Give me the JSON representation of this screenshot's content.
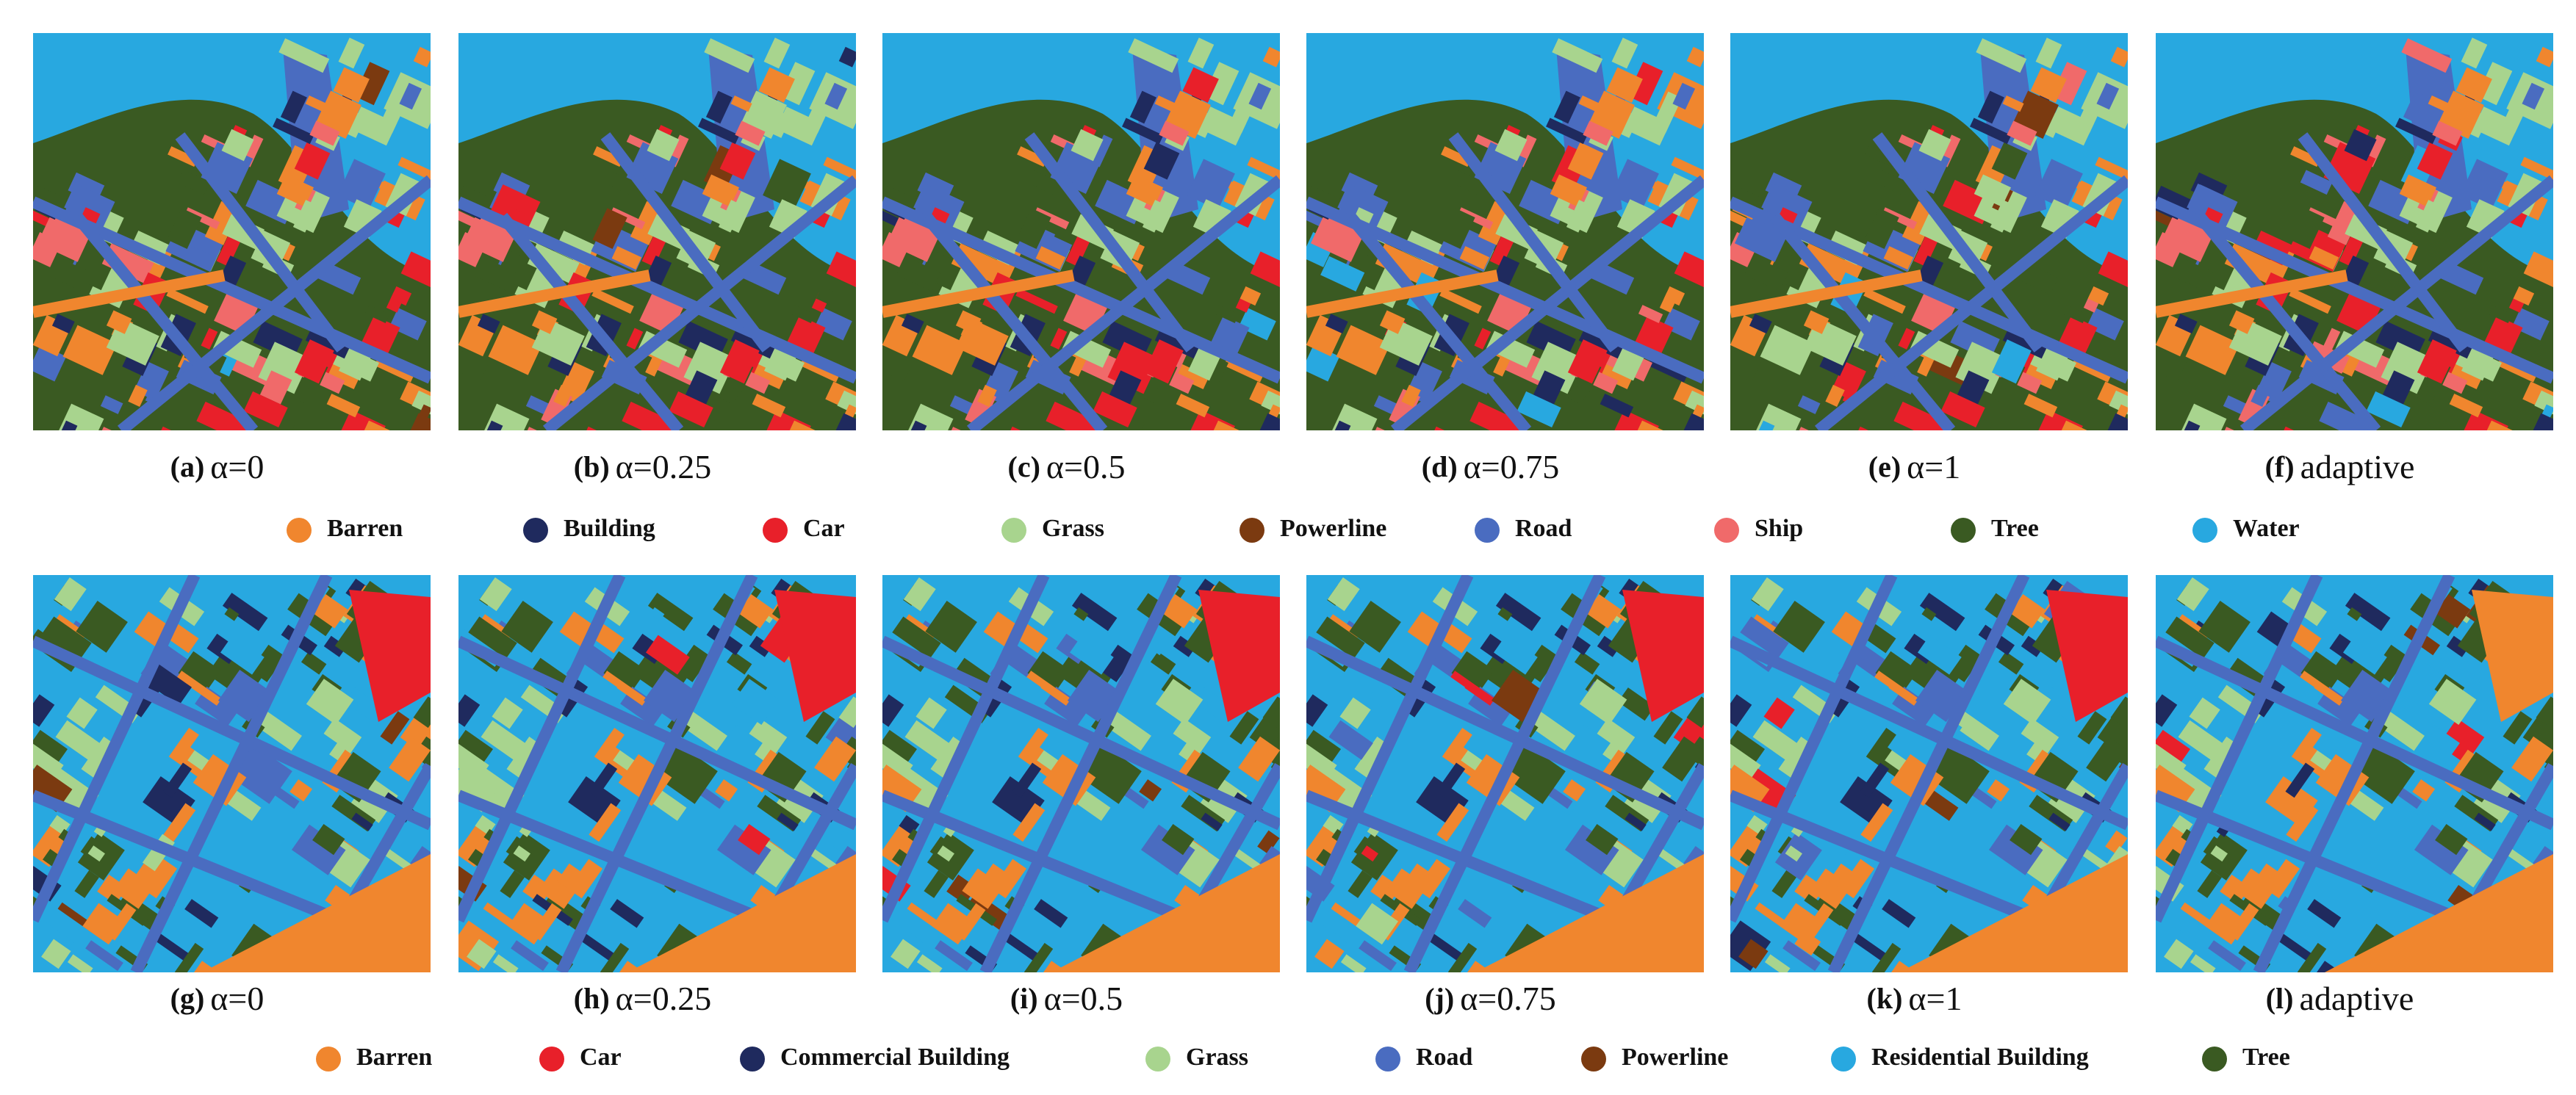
{
  "rows": [
    {
      "panels": [
        {
          "label": "(a)",
          "caption": "α=0"
        },
        {
          "label": "(b)",
          "caption": "α=0.25"
        },
        {
          "label": "(c)",
          "caption": "α=0.5"
        },
        {
          "label": "(d)",
          "caption": "α=0.75"
        },
        {
          "label": "(e)",
          "caption": "α=1"
        },
        {
          "label": "(f)",
          "caption": "adaptive"
        }
      ],
      "legend": [
        {
          "name": "Barren",
          "color": "#f0862e"
        },
        {
          "name": "Building",
          "color": "#1f2a5e"
        },
        {
          "name": "Car",
          "color": "#e8202a"
        },
        {
          "name": "Grass",
          "color": "#a8d48e"
        },
        {
          "name": "Powerline",
          "color": "#7b3a10"
        },
        {
          "name": "Road",
          "color": "#4a6cc0"
        },
        {
          "name": "Ship",
          "color": "#f06a6a"
        },
        {
          "name": "Tree",
          "color": "#3a5a22"
        },
        {
          "name": "Water",
          "color": "#28a8e0"
        }
      ]
    },
    {
      "panels": [
        {
          "label": "(g)",
          "caption": "α=0"
        },
        {
          "label": "(h)",
          "caption": "α=0.25"
        },
        {
          "label": "(i)",
          "caption": "α=0.5"
        },
        {
          "label": "(j)",
          "caption": "α=0.75"
        },
        {
          "label": "(k)",
          "caption": "α=1"
        },
        {
          "label": "(l)",
          "caption": "adaptive"
        }
      ],
      "legend": [
        {
          "name": "Barren",
          "color": "#f0862e"
        },
        {
          "name": "Car",
          "color": "#e8202a"
        },
        {
          "name": "Commercial Building",
          "color": "#1f2a5e"
        },
        {
          "name": "Grass",
          "color": "#a8d48e"
        },
        {
          "name": "Road",
          "color": "#4a6cc0"
        },
        {
          "name": "Powerline",
          "color": "#7b3a10"
        },
        {
          "name": "Residential Building",
          "color": "#28a8e0"
        },
        {
          "name": "Tree",
          "color": "#3a5a22"
        }
      ]
    }
  ]
}
